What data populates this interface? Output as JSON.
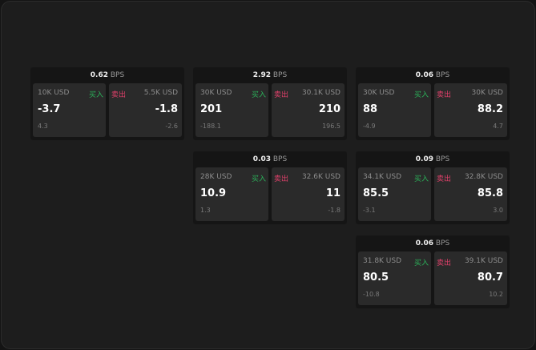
{
  "unit": "BPS",
  "buy_label": "买入",
  "sell_label": "卖出",
  "widgets": [
    {
      "spread": "0.62",
      "buy": {
        "qty": "10K USD",
        "price": "-3.7",
        "change": "4.3"
      },
      "sell": {
        "qty": "5.5K USD",
        "price": "-1.8",
        "change": "-2.6"
      }
    },
    {
      "spread": "2.92",
      "buy": {
        "qty": "30K USD",
        "price": "201",
        "change": "-188.1"
      },
      "sell": {
        "qty": "30.1K USD",
        "price": "210",
        "change": "196.5"
      }
    },
    {
      "spread": "0.06",
      "buy": {
        "qty": "30K USD",
        "price": "88",
        "change": "-4.9"
      },
      "sell": {
        "qty": "30K USD",
        "price": "88.2",
        "change": "4.7"
      }
    },
    {
      "spread": "0.03",
      "buy": {
        "qty": "28K USD",
        "price": "10.9",
        "change": "1.3"
      },
      "sell": {
        "qty": "32.6K USD",
        "price": "11",
        "change": "-1.8"
      }
    },
    {
      "spread": "0.09",
      "buy": {
        "qty": "34.1K USD",
        "price": "85.5",
        "change": "-3.1"
      },
      "sell": {
        "qty": "32.8K USD",
        "price": "85.8",
        "change": "3.0"
      }
    },
    {
      "spread": "0.06",
      "buy": {
        "qty": "31.8K USD",
        "price": "80.5",
        "change": "-10.8"
      },
      "sell": {
        "qty": "39.1K USD",
        "price": "80.7",
        "change": "10.2"
      }
    }
  ]
}
